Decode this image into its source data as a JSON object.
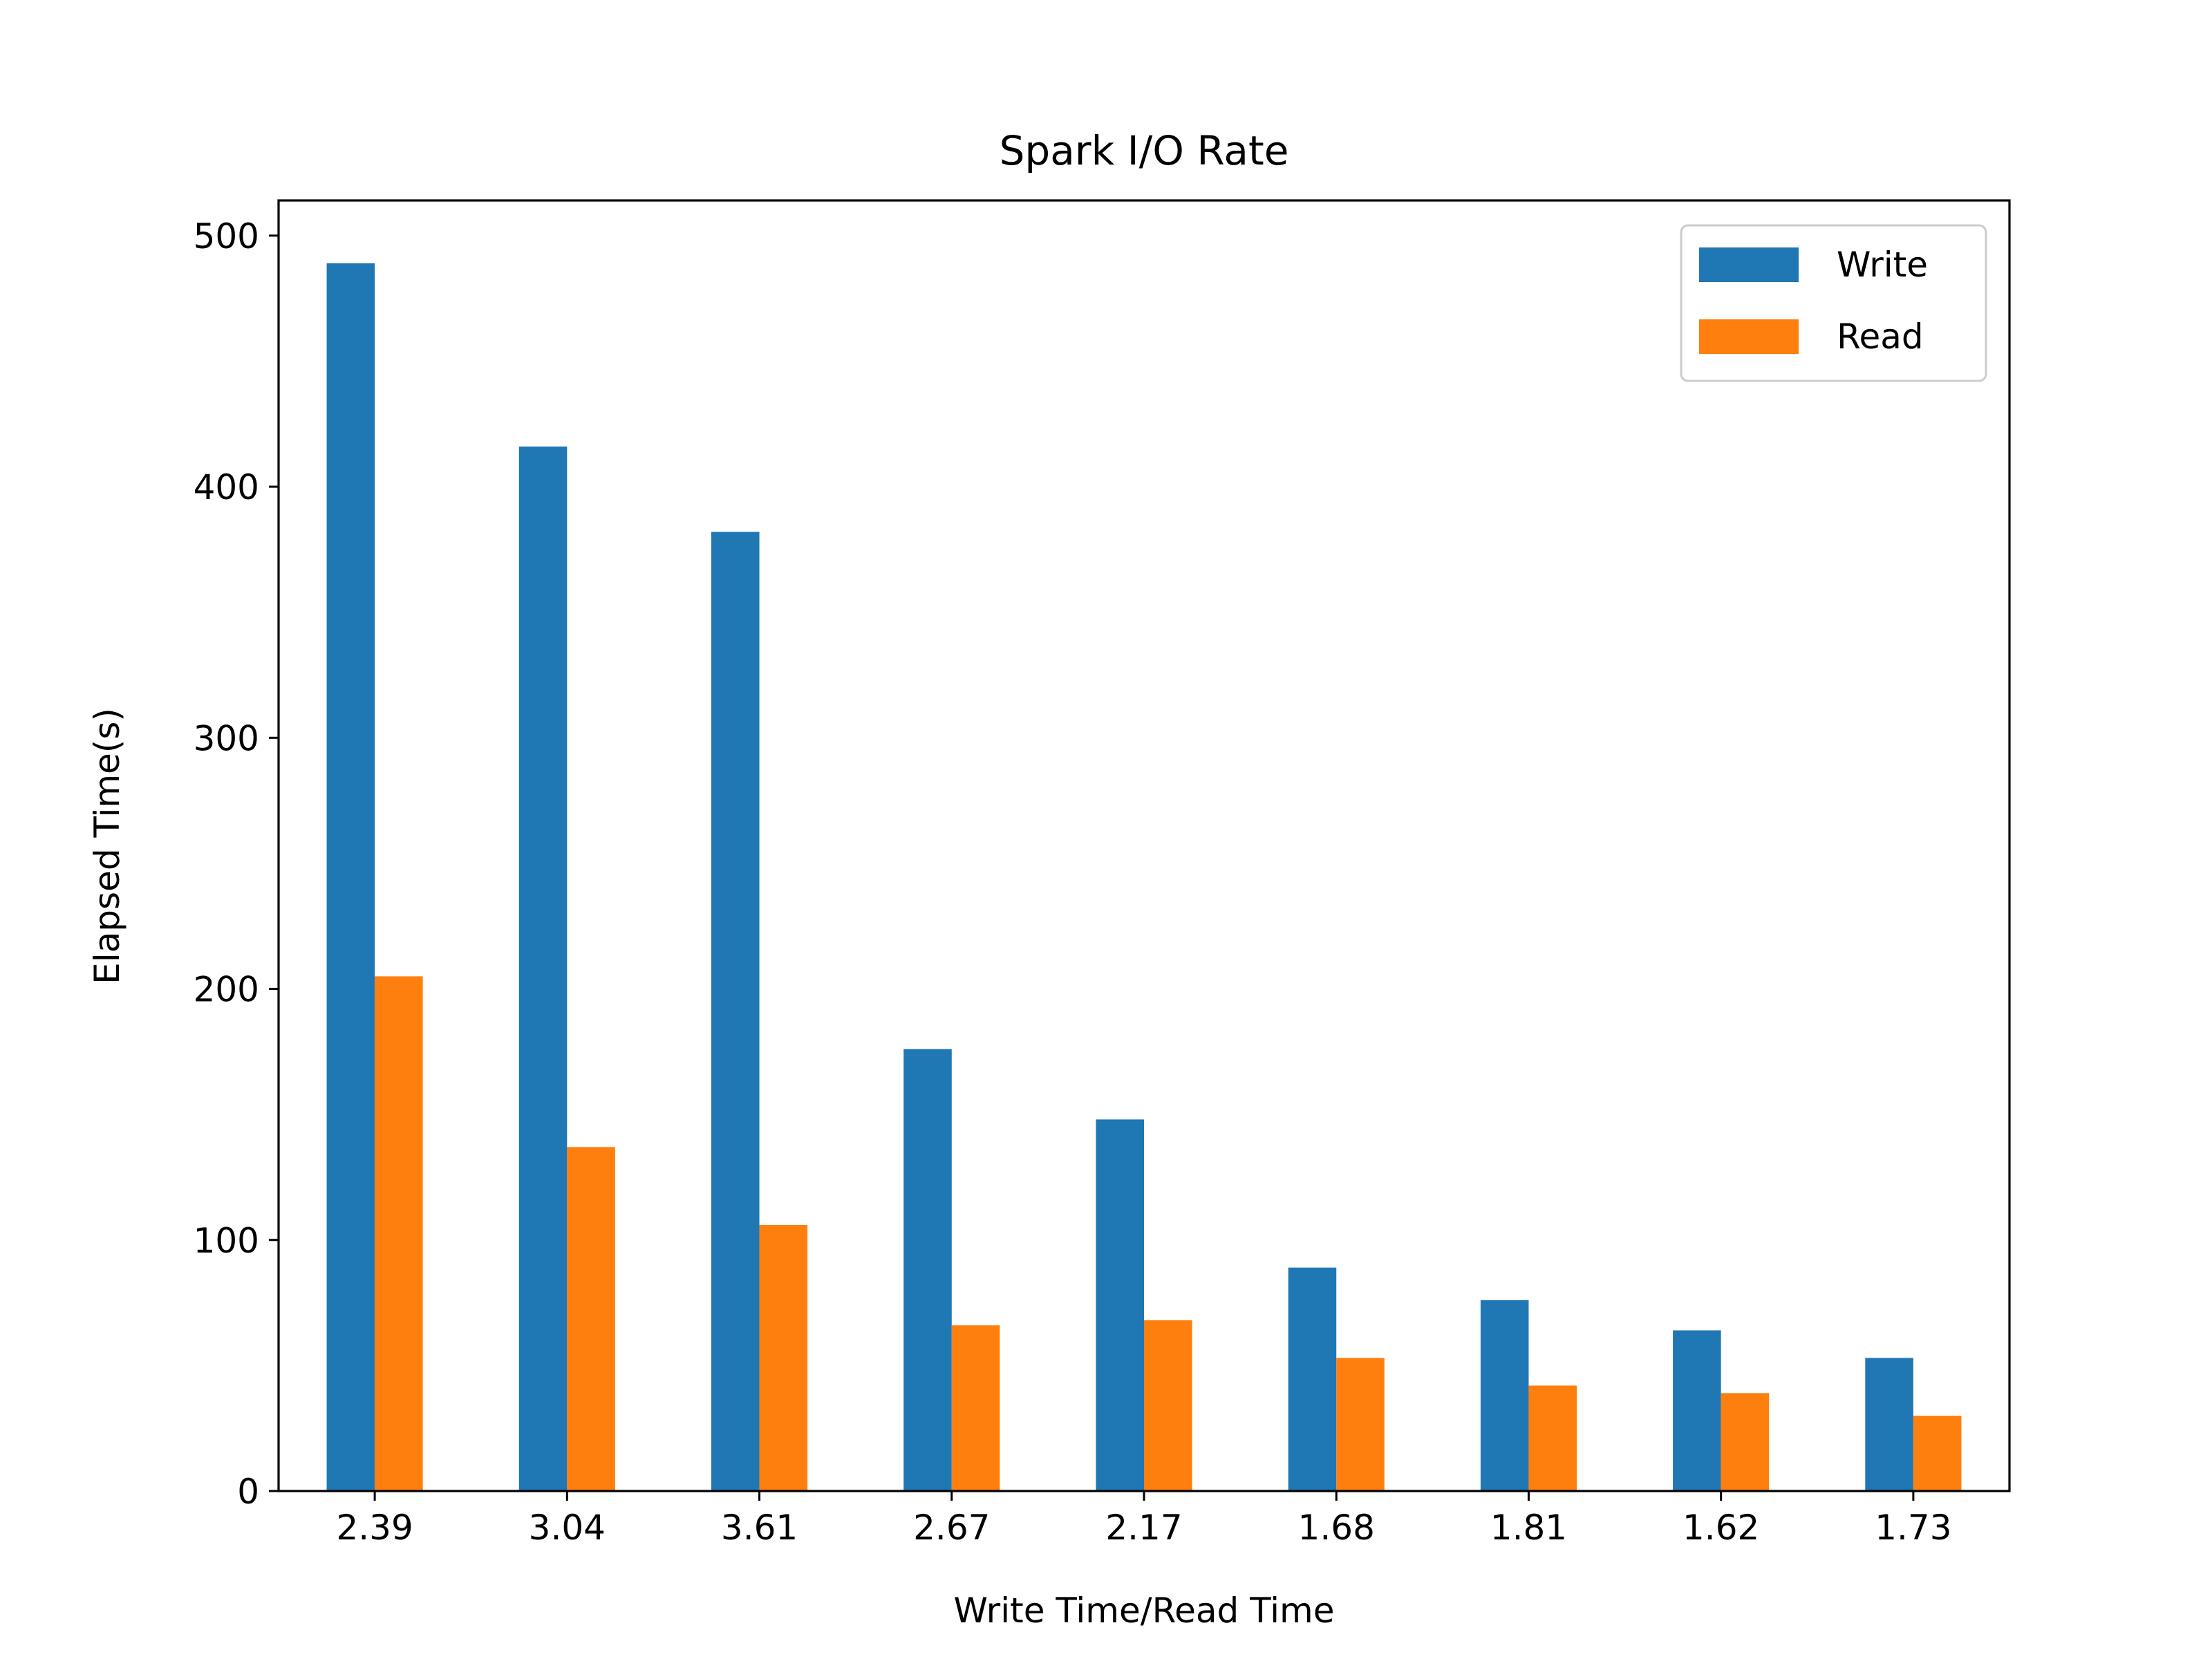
{
  "chart_data": {
    "type": "bar",
    "title": "Spark I/O Rate",
    "xlabel": "Write Time/Read Time",
    "ylabel": "Elapsed Time(s)",
    "categories": [
      "2.39",
      "3.04",
      "3.61",
      "2.67",
      "2.17",
      "1.68",
      "1.81",
      "1.62",
      "1.73"
    ],
    "series": [
      {
        "name": "Write",
        "color": "#1f77b4",
        "values": [
          489,
          416,
          382,
          176,
          148,
          89,
          76,
          64,
          53
        ]
      },
      {
        "name": "Read",
        "color": "#ff7f0e",
        "values": [
          205,
          137,
          106,
          66,
          68,
          53,
          42,
          39,
          30
        ]
      }
    ],
    "ylim": [
      0,
      514
    ],
    "yticks": [
      0,
      100,
      200,
      300,
      400,
      500
    ],
    "grid": false,
    "legend_position": "top-right"
  }
}
